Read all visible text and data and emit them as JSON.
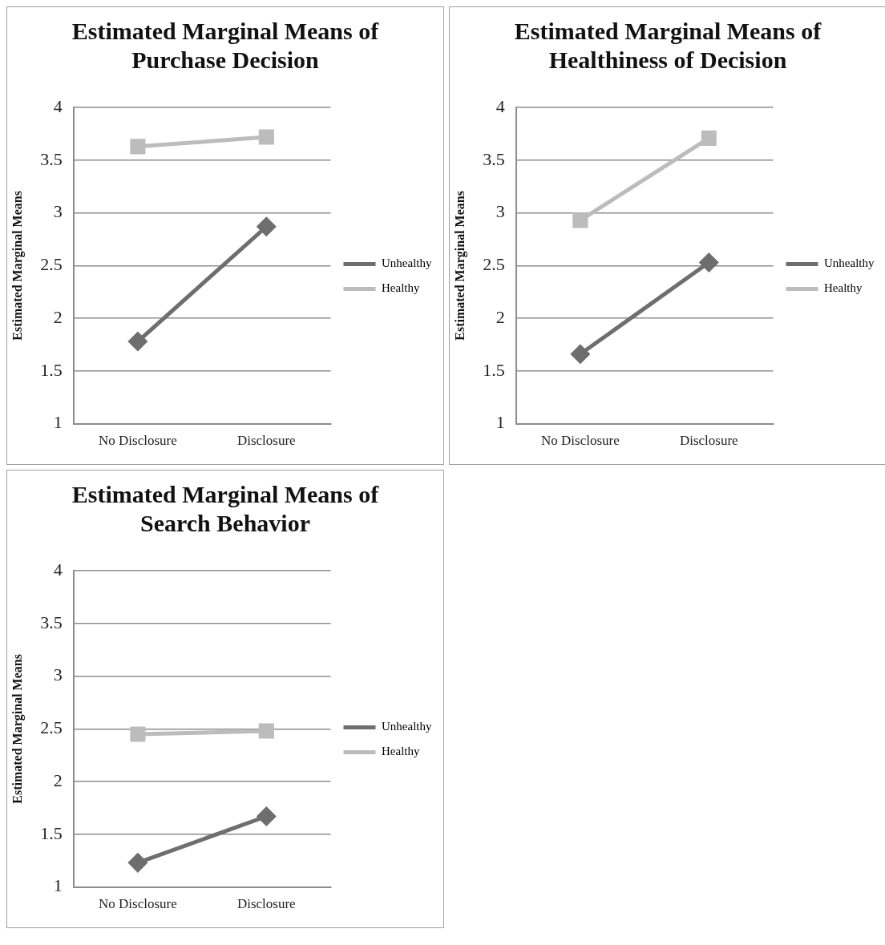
{
  "chart_data": [
    {
      "type": "line",
      "title": "Estimated Marginal Means of Purchase Decision",
      "ylabel": "Estimated Marginal Means",
      "categories": [
        "No Disclosure",
        "Disclosure"
      ],
      "ylim": [
        1,
        4
      ],
      "yticks": [
        1,
        1.5,
        2,
        2.5,
        3,
        3.5,
        4
      ],
      "grid": "y",
      "legend": "right",
      "series": [
        {
          "name": "Unhealthy",
          "color": "#6e6e6e",
          "marker": "diamond",
          "values": [
            1.78,
            2.87
          ]
        },
        {
          "name": "Healthy",
          "color": "#bcbcbc",
          "marker": "square",
          "values": [
            3.63,
            3.72
          ]
        }
      ]
    },
    {
      "type": "line",
      "title": "Estimated Marginal Means of Healthiness of Decision",
      "ylabel": "Estimated Marginal Means",
      "categories": [
        "No Disclosure",
        "Disclosure"
      ],
      "ylim": [
        1,
        4
      ],
      "yticks": [
        1,
        1.5,
        2,
        2.5,
        3,
        3.5,
        4
      ],
      "grid": "y",
      "legend": "right",
      "series": [
        {
          "name": "Unhealthy",
          "color": "#6e6e6e",
          "marker": "diamond",
          "values": [
            1.66,
            2.53
          ]
        },
        {
          "name": "Healthy",
          "color": "#bcbcbc",
          "marker": "square",
          "values": [
            2.93,
            3.71
          ]
        }
      ]
    },
    {
      "type": "line",
      "title": "Estimated Marginal Means of Search Behavior",
      "ylabel": "Estimated Marginal Means",
      "categories": [
        "No Disclosure",
        "Disclosure"
      ],
      "ylim": [
        1,
        4
      ],
      "yticks": [
        1,
        1.5,
        2,
        2.5,
        3,
        3.5,
        4
      ],
      "grid": "y",
      "legend": "right",
      "series": [
        {
          "name": "Unhealthy",
          "color": "#6e6e6e",
          "marker": "diamond",
          "values": [
            1.23,
            1.67
          ]
        },
        {
          "name": "Healthy",
          "color": "#bcbcbc",
          "marker": "square",
          "values": [
            2.45,
            2.48
          ]
        }
      ]
    }
  ]
}
